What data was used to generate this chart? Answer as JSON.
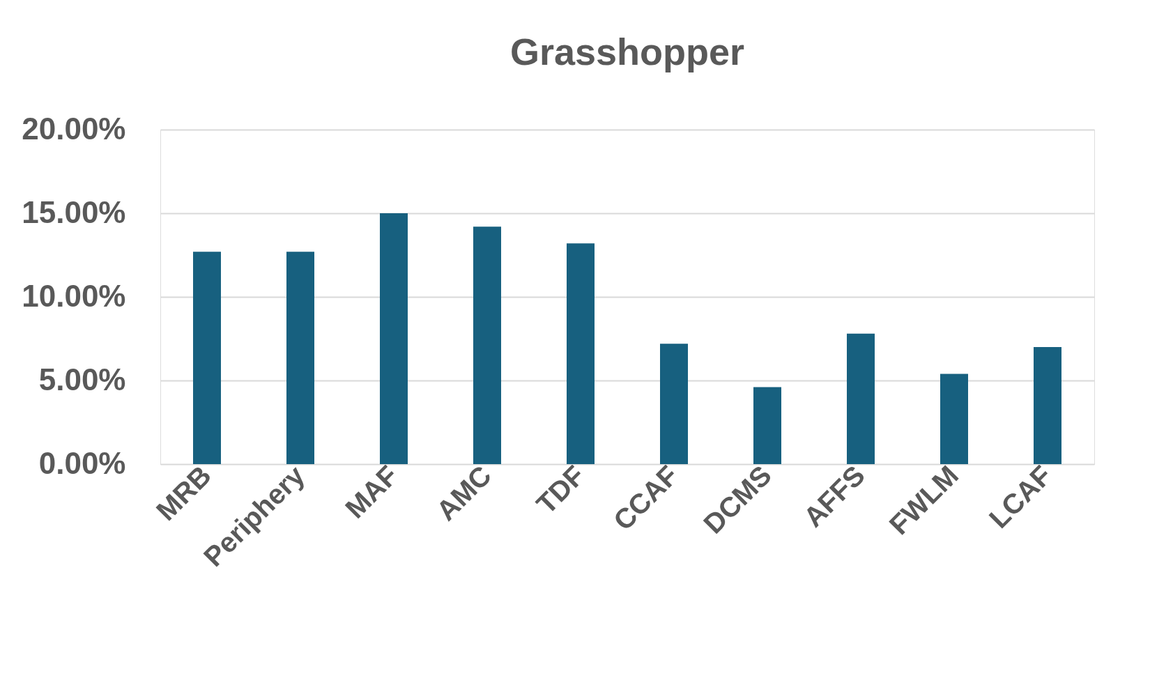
{
  "chart_data": {
    "type": "bar",
    "title": "Grasshopper",
    "categories": [
      "MRB",
      "Periphery",
      "MAF",
      "AMC",
      "TDF",
      "CCAF",
      "DCMS",
      "AFFS",
      "FWLM",
      "LCAF"
    ],
    "values": [
      12.7,
      12.7,
      15.0,
      14.2,
      13.2,
      7.2,
      4.6,
      7.8,
      5.4,
      7.0
    ],
    "color": "#17607f",
    "ylim": [
      0,
      20
    ],
    "yticks": [
      {
        "value": 0,
        "label": "0.00%"
      },
      {
        "value": 5,
        "label": "5.00%"
      },
      {
        "value": 10,
        "label": "10.00%"
      },
      {
        "value": 15,
        "label": "15.00%"
      },
      {
        "value": 20,
        "label": "20.00%"
      }
    ],
    "grid": "y"
  }
}
